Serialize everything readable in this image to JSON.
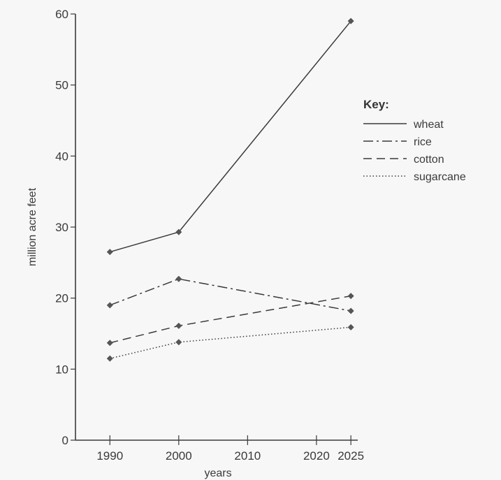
{
  "chart_data": {
    "type": "line",
    "title": "",
    "xlabel": "years",
    "ylabel": "million acre feet",
    "xlim": [
      1985,
      2026
    ],
    "ylim": [
      0,
      60
    ],
    "x_ticks": [
      1990,
      2000,
      2010,
      2020,
      2025
    ],
    "y_ticks": [
      0,
      10,
      20,
      30,
      40,
      50,
      60
    ],
    "x_tick_labels": [
      "1990",
      "2000",
      "2010",
      "2020",
      "2025"
    ],
    "y_tick_labels": [
      "0",
      "10",
      "20",
      "30",
      "40",
      "50",
      "60"
    ],
    "x": [
      1990,
      2000,
      2025
    ],
    "grid": false,
    "legend": {
      "title": "Key:",
      "placement": "right"
    },
    "series": [
      {
        "name": "wheat",
        "dash": "solid",
        "values": [
          26.5,
          29.3,
          59
        ]
      },
      {
        "name": "rice",
        "dash": "dashdot",
        "values": [
          19,
          22.7,
          18.2
        ]
      },
      {
        "name": "cotton",
        "dash": "dashed",
        "values": [
          13.7,
          16.1,
          20.3
        ]
      },
      {
        "name": "sugarcane",
        "dash": "dotted",
        "values": [
          11.5,
          13.8,
          15.9
        ]
      }
    ]
  }
}
